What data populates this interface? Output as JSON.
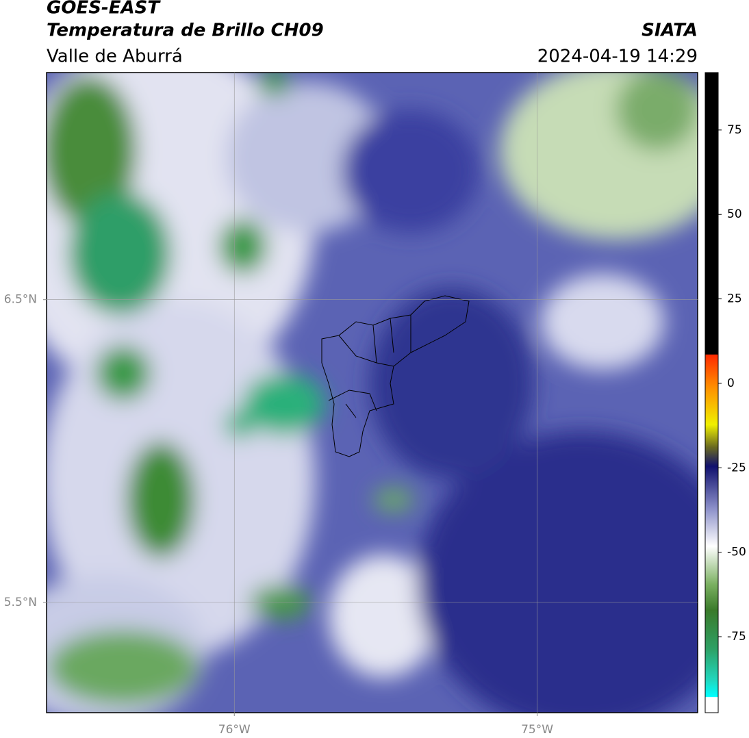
{
  "chart_data": {
    "type": "map",
    "title": "GOES-EAST",
    "subtitle": "Temperatura de Brillo CH09",
    "region": "Valle de Aburrá",
    "source": "SIATA",
    "date": "2024-04-19 14:29",
    "xlim": [
      -76.62,
      -74.47
    ],
    "ylim": [
      5.136,
      7.25
    ],
    "xticks": [
      {
        "value": -76,
        "label": "76°W"
      },
      {
        "value": -75,
        "label": "75°W"
      }
    ],
    "yticks": [
      {
        "value": 6.5,
        "label": "6.5°N"
      },
      {
        "value": 5.5,
        "label": "5.5°N"
      }
    ],
    "grid": true,
    "colorbar": {
      "lim": [
        -97.5,
        92
      ],
      "ticks": [
        75,
        50,
        25,
        0,
        -25,
        -50,
        -75
      ]
    }
  }
}
